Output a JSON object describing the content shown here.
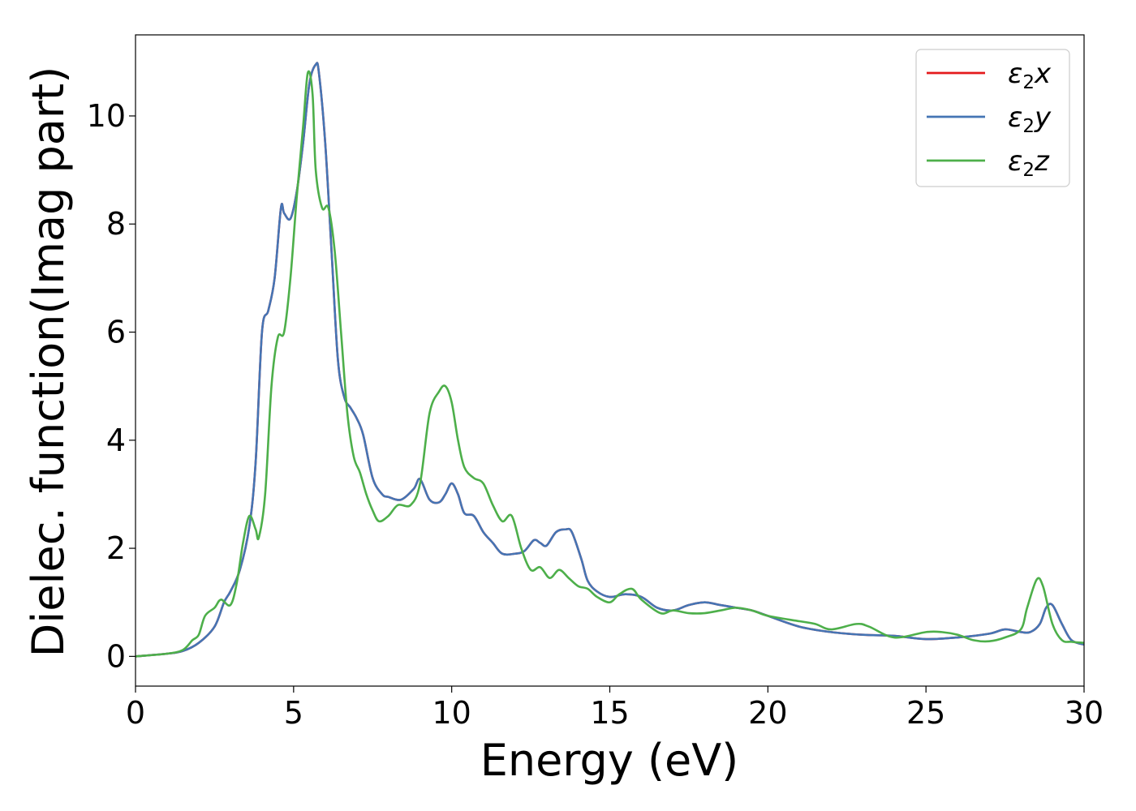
{
  "chart_data": {
    "type": "line",
    "xlabel": "Energy (eV)",
    "ylabel": "Dielec. function(Imag part)",
    "xlim": [
      0,
      30
    ],
    "ylim": [
      -0.55,
      11.5
    ],
    "xticks": [
      0,
      5,
      10,
      15,
      20,
      25,
      30
    ],
    "yticks": [
      0,
      2,
      4,
      6,
      8,
      10
    ],
    "grid": false,
    "legend_position": "top-right",
    "series": [
      {
        "name": "ε2x",
        "legend": {
          "base": "ε",
          "sub": "2",
          "suffix": "x"
        },
        "color": "#e41a1c",
        "x": [
          0,
          1,
          1.5,
          2,
          2.5,
          2.8,
          3,
          3.3,
          3.6,
          3.8,
          4,
          4.2,
          4.4,
          4.6,
          4.7,
          4.9,
          5.1,
          5.3,
          5.5,
          5.7,
          5.8,
          6,
          6.2,
          6.4,
          6.6,
          6.8,
          7,
          7.2,
          7.5,
          7.8,
          8,
          8.4,
          8.8,
          9,
          9.3,
          9.6,
          9.8,
          10,
          10.2,
          10.4,
          10.7,
          11,
          11.3,
          11.6,
          12,
          12.3,
          12.6,
          12.8,
          13,
          13.3,
          13.6,
          13.8,
          14.1,
          14.3,
          14.6,
          15,
          15.5,
          16,
          16.5,
          17,
          17.5,
          18,
          18.5,
          19,
          19.5,
          20,
          21,
          22,
          23,
          24,
          25,
          26,
          27,
          27.5,
          28,
          28.3,
          28.6,
          28.8,
          29,
          29.3,
          29.6,
          30
        ],
        "y": [
          0,
          0.05,
          0.1,
          0.25,
          0.55,
          1.0,
          1.2,
          1.6,
          2.4,
          3.6,
          6.0,
          6.4,
          7.0,
          8.3,
          8.2,
          8.1,
          8.6,
          9.5,
          10.6,
          10.95,
          10.8,
          9.5,
          7.5,
          5.5,
          4.8,
          4.6,
          4.4,
          4.1,
          3.3,
          3.0,
          2.95,
          2.9,
          3.1,
          3.28,
          2.9,
          2.85,
          3.0,
          3.2,
          3.0,
          2.65,
          2.6,
          2.3,
          2.1,
          1.9,
          1.9,
          1.95,
          2.15,
          2.1,
          2.05,
          2.3,
          2.35,
          2.3,
          1.8,
          1.4,
          1.2,
          1.1,
          1.15,
          1.1,
          0.9,
          0.85,
          0.95,
          1.0,
          0.95,
          0.9,
          0.85,
          0.75,
          0.55,
          0.45,
          0.4,
          0.38,
          0.32,
          0.35,
          0.42,
          0.5,
          0.45,
          0.45,
          0.6,
          0.9,
          0.95,
          0.6,
          0.3,
          0.22
        ]
      },
      {
        "name": "ε2y",
        "legend": {
          "base": "ε",
          "sub": "2",
          "suffix": "y"
        },
        "color": "#4575b4",
        "x": [
          0,
          1,
          1.5,
          2,
          2.5,
          2.8,
          3,
          3.3,
          3.6,
          3.8,
          4,
          4.2,
          4.4,
          4.6,
          4.7,
          4.9,
          5.1,
          5.3,
          5.5,
          5.7,
          5.8,
          6,
          6.2,
          6.4,
          6.6,
          6.8,
          7,
          7.2,
          7.5,
          7.8,
          8,
          8.4,
          8.8,
          9,
          9.3,
          9.6,
          9.8,
          10,
          10.2,
          10.4,
          10.7,
          11,
          11.3,
          11.6,
          12,
          12.3,
          12.6,
          12.8,
          13,
          13.3,
          13.6,
          13.8,
          14.1,
          14.3,
          14.6,
          15,
          15.5,
          16,
          16.5,
          17,
          17.5,
          18,
          18.5,
          19,
          19.5,
          20,
          21,
          22,
          23,
          24,
          25,
          26,
          27,
          27.5,
          28,
          28.3,
          28.6,
          28.8,
          29,
          29.3,
          29.6,
          30
        ],
        "y": [
          0,
          0.05,
          0.1,
          0.25,
          0.55,
          1.0,
          1.2,
          1.6,
          2.4,
          3.6,
          6.0,
          6.4,
          7.0,
          8.3,
          8.2,
          8.1,
          8.6,
          9.5,
          10.6,
          10.95,
          10.8,
          9.5,
          7.5,
          5.5,
          4.8,
          4.6,
          4.4,
          4.1,
          3.3,
          3.0,
          2.95,
          2.9,
          3.1,
          3.28,
          2.9,
          2.85,
          3.0,
          3.2,
          3.0,
          2.65,
          2.6,
          2.3,
          2.1,
          1.9,
          1.9,
          1.95,
          2.15,
          2.1,
          2.05,
          2.3,
          2.35,
          2.3,
          1.8,
          1.4,
          1.2,
          1.1,
          1.15,
          1.1,
          0.9,
          0.85,
          0.95,
          1.0,
          0.95,
          0.9,
          0.85,
          0.75,
          0.55,
          0.45,
          0.4,
          0.38,
          0.32,
          0.35,
          0.42,
          0.5,
          0.45,
          0.45,
          0.6,
          0.9,
          0.95,
          0.6,
          0.3,
          0.22
        ]
      },
      {
        "name": "ε2z",
        "legend": {
          "base": "ε",
          "sub": "2",
          "suffix": "z"
        },
        "color": "#4daf4a",
        "x": [
          0,
          1,
          1.5,
          1.8,
          2,
          2.2,
          2.5,
          2.7,
          3,
          3.2,
          3.4,
          3.6,
          3.8,
          3.9,
          4.1,
          4.3,
          4.5,
          4.7,
          4.9,
          5.1,
          5.3,
          5.45,
          5.6,
          5.7,
          5.9,
          6.1,
          6.3,
          6.5,
          6.7,
          6.9,
          7.1,
          7.3,
          7.5,
          7.7,
          8,
          8.3,
          8.7,
          9,
          9.3,
          9.6,
          9.8,
          10,
          10.2,
          10.4,
          10.7,
          11,
          11.3,
          11.6,
          11.9,
          12.2,
          12.5,
          12.8,
          13.1,
          13.4,
          13.7,
          14,
          14.3,
          14.6,
          15,
          15.3,
          15.7,
          16,
          16.6,
          17,
          17.5,
          18,
          18.5,
          19,
          19.5,
          20,
          21,
          21.5,
          22,
          22.8,
          23.2,
          24,
          25,
          25.5,
          26,
          26.5,
          27,
          27.5,
          28,
          28.2,
          28.5,
          28.7,
          29,
          29.3,
          29.6,
          30
        ],
        "y": [
          0,
          0.05,
          0.12,
          0.3,
          0.4,
          0.75,
          0.9,
          1.05,
          0.95,
          1.35,
          2.1,
          2.6,
          2.35,
          2.2,
          3.0,
          5.0,
          5.9,
          6.0,
          7.0,
          8.5,
          9.8,
          10.8,
          10.4,
          9.0,
          8.3,
          8.3,
          7.5,
          6.0,
          4.5,
          3.7,
          3.4,
          3.0,
          2.7,
          2.5,
          2.6,
          2.8,
          2.8,
          3.2,
          4.5,
          4.9,
          5.0,
          4.7,
          4.0,
          3.5,
          3.3,
          3.2,
          2.8,
          2.5,
          2.6,
          2.0,
          1.6,
          1.65,
          1.45,
          1.6,
          1.45,
          1.3,
          1.25,
          1.1,
          1.0,
          1.15,
          1.25,
          1.05,
          0.8,
          0.85,
          0.8,
          0.8,
          0.85,
          0.9,
          0.85,
          0.75,
          0.65,
          0.6,
          0.5,
          0.6,
          0.55,
          0.35,
          0.45,
          0.45,
          0.4,
          0.3,
          0.28,
          0.35,
          0.5,
          0.9,
          1.42,
          1.3,
          0.6,
          0.3,
          0.27,
          0.25
        ]
      }
    ]
  }
}
